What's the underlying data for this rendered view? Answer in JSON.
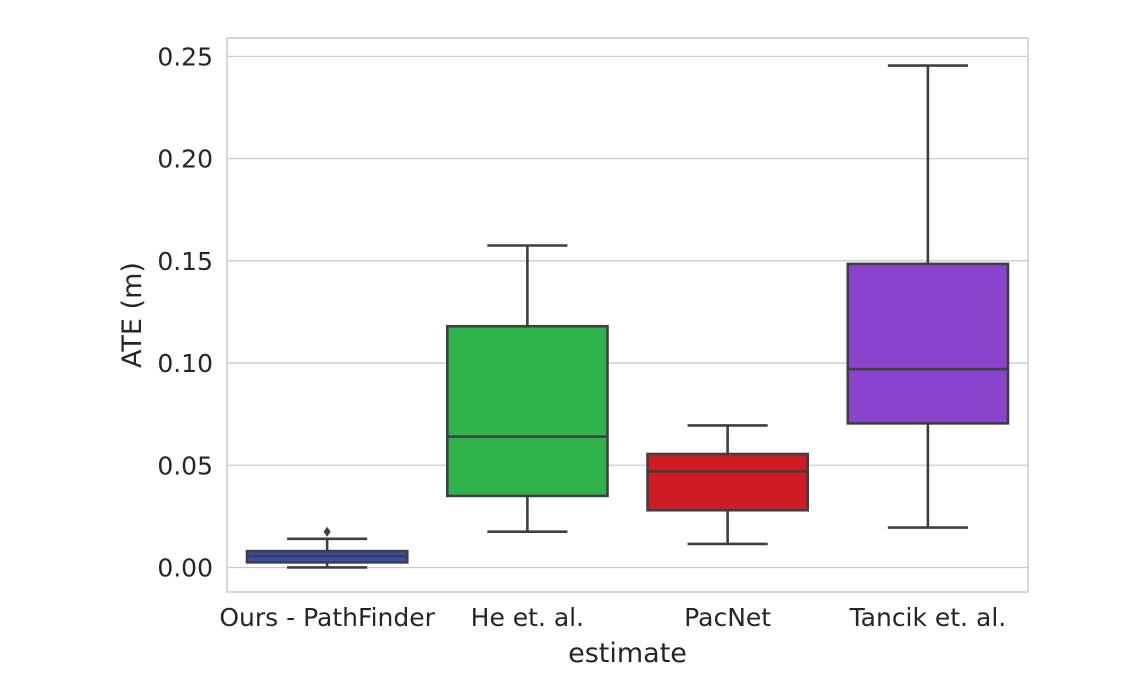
{
  "chart_data": {
    "type": "box",
    "xlabel": "estimate",
    "ylabel": "ATE (m)",
    "ylim": [
      -0.012,
      0.259
    ],
    "yticks": [
      "0.00",
      "0.05",
      "0.10",
      "0.15",
      "0.20",
      "0.25"
    ],
    "grid": true,
    "categories": [
      "Ours - PathFinder",
      "He et. al.",
      "PacNet",
      "Tancik et. al."
    ],
    "boxes": [
      {
        "category": "Ours - PathFinder",
        "whisker_low": 0.0,
        "q1": 0.0025,
        "median": 0.0055,
        "q3": 0.008,
        "whisker_high": 0.014,
        "outliers": [
          0.0175
        ],
        "color": "#2f4fc2"
      },
      {
        "category": "He et. al.",
        "whisker_low": 0.0175,
        "q1": 0.035,
        "median": 0.064,
        "q3": 0.118,
        "whisker_high": 0.1575,
        "outliers": [],
        "color": "#2fb34a"
      },
      {
        "category": "PacNet",
        "whisker_low": 0.0115,
        "q1": 0.028,
        "median": 0.047,
        "q3": 0.0555,
        "whisker_high": 0.0695,
        "outliers": [],
        "color": "#cf1b24"
      },
      {
        "category": "Tancik et. al.",
        "whisker_low": 0.0195,
        "q1": 0.0705,
        "median": 0.097,
        "q3": 0.1485,
        "whisker_high": 0.2455,
        "outliers": [],
        "color": "#8a43cc"
      }
    ]
  }
}
